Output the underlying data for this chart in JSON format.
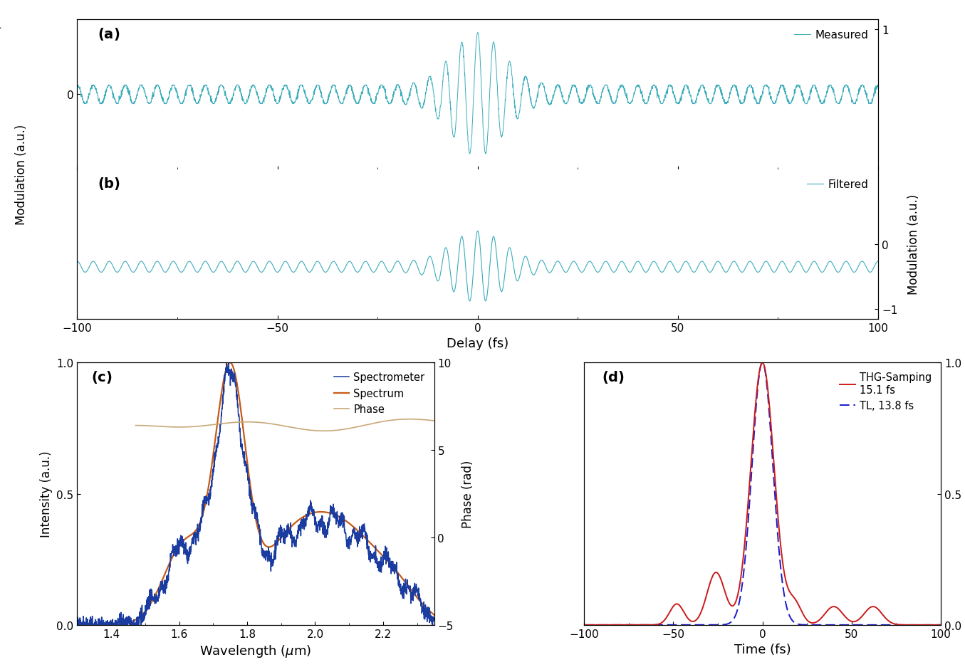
{
  "fig_width": 13.55,
  "fig_height": 9.45,
  "dpi": 100,
  "bg_color": "#ffffff",
  "panel_a_color": "#3aacba",
  "panel_b_color": "#3aacba",
  "panel_c_spec_color": "#1a3ba0",
  "panel_c_spect_color": "#c85a18",
  "panel_c_phase_color": "#c8a878",
  "panel_d_thg_color": "#cc1a1a",
  "panel_d_tl_color": "#1a1acc",
  "delay_xlim": [
    -100,
    100
  ],
  "c_xlim": [
    1.3,
    2.35
  ],
  "c_ylim": [
    0,
    1
  ],
  "c_phase_ylim": [
    -5,
    10
  ],
  "d_xlim": [
    -100,
    100
  ],
  "d_ylim": [
    0,
    1
  ]
}
